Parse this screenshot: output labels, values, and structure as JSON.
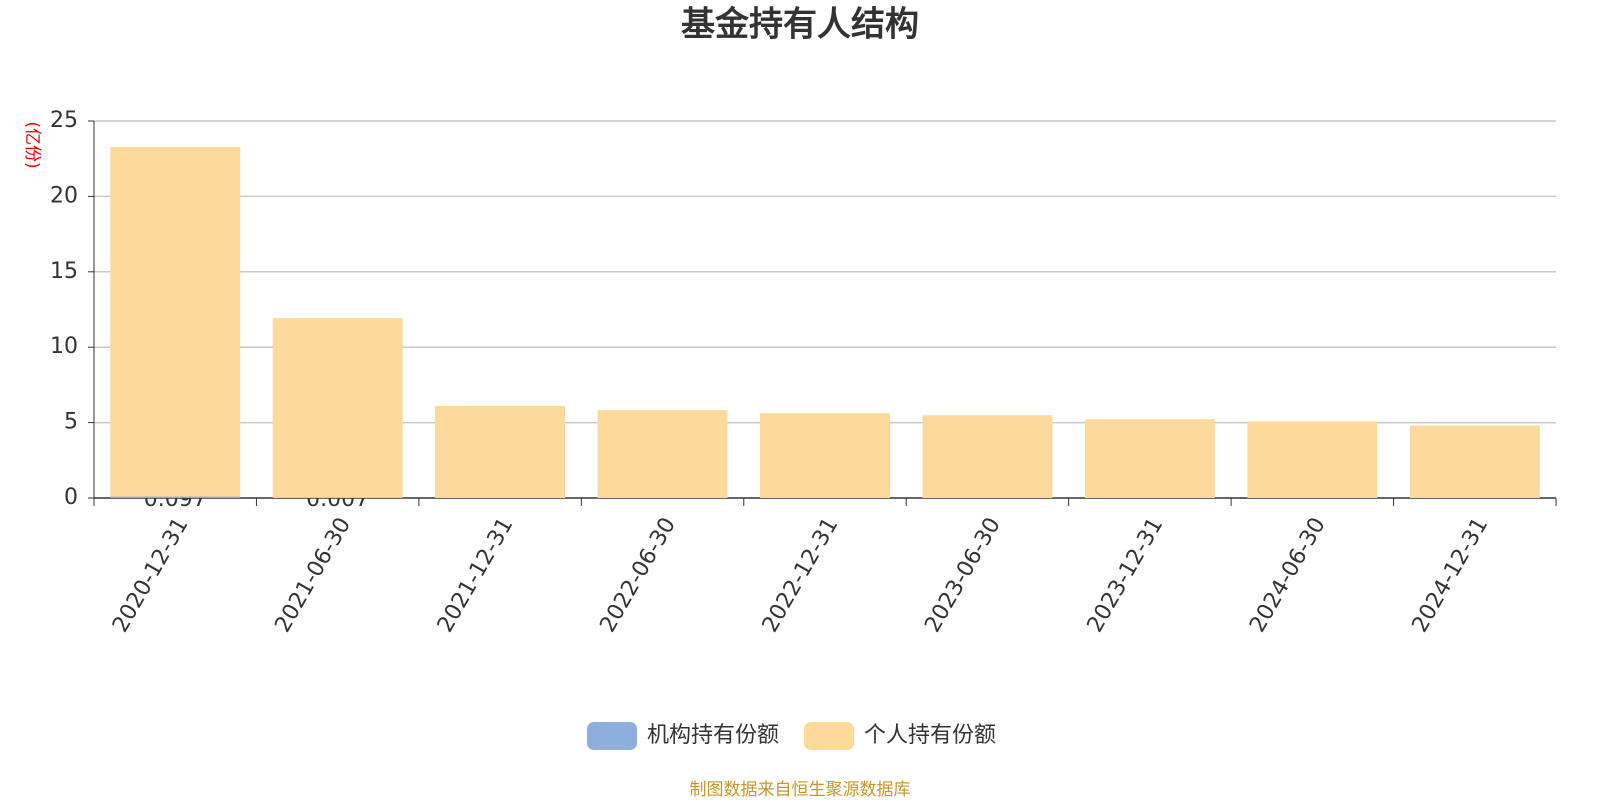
{
  "chart_data": {
    "type": "stacked_bar",
    "title": "基金持有人结构",
    "y_label": "(亿份)",
    "categories": [
      "2020-12-31",
      "2021-06-30",
      "2021-12-31",
      "2022-06-30",
      "2022-12-31",
      "2023-06-30",
      "2023-12-31",
      "2024-06-30",
      "2024-12-31"
    ],
    "series": [
      {
        "name": "机构持有份额",
        "color": "#8eaedb",
        "values": [
          0.097,
          0.007,
          null,
          null,
          null,
          null,
          null,
          null,
          null
        ]
      },
      {
        "name": "个人持有份额",
        "color": "#fdd99b",
        "values": [
          23.17,
          11.92,
          6.1,
          5.83,
          5.62,
          5.49,
          5.22,
          5.08,
          4.81
        ]
      }
    ],
    "ylim": [
      0,
      25
    ],
    "yticks": [
      0,
      5,
      10,
      15,
      20,
      25
    ],
    "grid": true,
    "source": "制图数据来自恒生聚源数据库"
  }
}
